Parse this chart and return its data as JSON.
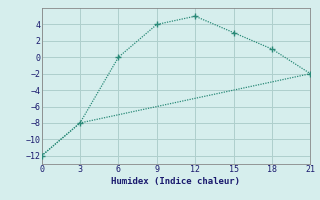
{
  "line1_x": [
    0,
    3,
    6,
    9,
    12,
    15,
    18,
    21
  ],
  "line1_y": [
    -12,
    -8,
    0,
    4,
    5,
    3,
    1,
    -2
  ],
  "line2_x": [
    0,
    3,
    21
  ],
  "line2_y": [
    -12,
    -8,
    -2
  ],
  "line_color": "#2a8a78",
  "bg_color": "#d6eeed",
  "grid_color": "#aecfcc",
  "xlabel": "Humidex (Indice chaleur)",
  "xlim": [
    0,
    21
  ],
  "ylim": [
    -13,
    6
  ],
  "xticks": [
    0,
    3,
    6,
    9,
    12,
    15,
    18,
    21
  ],
  "yticks": [
    -12,
    -10,
    -8,
    -6,
    -4,
    -2,
    0,
    2,
    4
  ]
}
